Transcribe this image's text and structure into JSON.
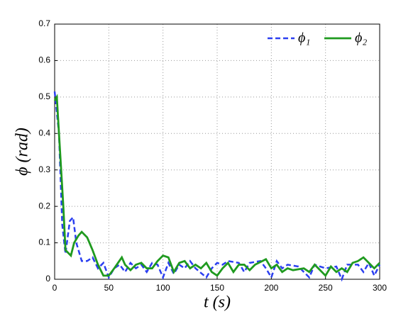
{
  "chart_data": {
    "type": "line",
    "xlabel": "t (s)",
    "ylabel": "ϕ (rad)",
    "xlim": [
      0,
      300
    ],
    "xticks": [
      0,
      50,
      100,
      150,
      200,
      250,
      300
    ],
    "ylim": [
      0,
      0.7
    ],
    "yticks": [
      0,
      0.1,
      0.2,
      0.3,
      0.4,
      0.5,
      0.6,
      0.7
    ],
    "grid": true,
    "legend": "upper right",
    "series": [
      {
        "name": "ϕ₁",
        "color": "#2b3ff0",
        "dash": true,
        "x": [
          0,
          4,
          7,
          10,
          14,
          17,
          20,
          25,
          30,
          35,
          40,
          45,
          50,
          55,
          60,
          65,
          70,
          75,
          80,
          85,
          90,
          95,
          100,
          105,
          110,
          115,
          120,
          125,
          130,
          140,
          145,
          150,
          155,
          160,
          170,
          175,
          180,
          190,
          195,
          200,
          205,
          210,
          215,
          225,
          235,
          240,
          250,
          260,
          265,
          270,
          280,
          285,
          290,
          295,
          300
        ],
        "values": [
          0.515,
          0.4,
          0.15,
          0.07,
          0.16,
          0.17,
          0.1,
          0.05,
          0.05,
          0.06,
          0.03,
          0.045,
          0.005,
          0.03,
          0.04,
          0.02,
          0.045,
          0.03,
          0.04,
          0.02,
          0.045,
          0.04,
          0.005,
          0.045,
          0.015,
          0.04,
          0.03,
          0.05,
          0.03,
          0.005,
          0.03,
          0.045,
          0.04,
          0.05,
          0.045,
          0.02,
          0.045,
          0.05,
          0.03,
          0.005,
          0.05,
          0.03,
          0.04,
          0.035,
          0.005,
          0.04,
          0.03,
          0.035,
          0.0,
          0.04,
          0.04,
          0.02,
          0.045,
          0.01,
          0.04
        ]
      },
      {
        "name": "ϕ₂",
        "color": "#1f9a1f",
        "dash": false,
        "x": [
          0,
          2,
          8,
          10,
          15,
          18,
          22,
          25,
          30,
          35,
          40,
          45,
          50,
          55,
          62,
          65,
          70,
          75,
          80,
          85,
          90,
          95,
          100,
          105,
          110,
          115,
          120,
          125,
          130,
          135,
          140,
          145,
          150,
          155,
          160,
          165,
          170,
          175,
          180,
          185,
          195,
          200,
          205,
          210,
          215,
          220,
          230,
          235,
          240,
          245,
          250,
          255,
          260,
          265,
          270,
          275,
          280,
          285,
          290,
          295,
          300
        ],
        "values": [
          0.49,
          0.5,
          0.2,
          0.08,
          0.065,
          0.1,
          0.12,
          0.13,
          0.115,
          0.08,
          0.04,
          0.01,
          0.01,
          0.03,
          0.06,
          0.04,
          0.025,
          0.04,
          0.045,
          0.03,
          0.03,
          0.05,
          0.065,
          0.06,
          0.02,
          0.045,
          0.05,
          0.03,
          0.04,
          0.03,
          0.045,
          0.02,
          0.01,
          0.03,
          0.045,
          0.02,
          0.04,
          0.04,
          0.025,
          0.04,
          0.055,
          0.03,
          0.04,
          0.02,
          0.03,
          0.025,
          0.03,
          0.02,
          0.04,
          0.025,
          0.01,
          0.035,
          0.02,
          0.03,
          0.02,
          0.045,
          0.05,
          0.06,
          0.045,
          0.03,
          0.045
        ]
      }
    ]
  }
}
